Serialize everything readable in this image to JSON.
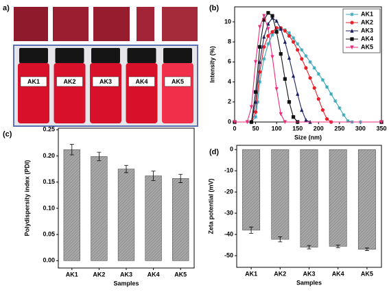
{
  "photo_panel": {
    "label": "a)",
    "jar_labels": [
      "AK1",
      "AK2",
      "AK3",
      "AK4",
      "AK5"
    ]
  },
  "chart_data": [
    {
      "type": "line",
      "panel_label": "(b)",
      "x_label": "Size (nm)",
      "y_label": "Intensity (%)",
      "xlim": [
        0,
        350
      ],
      "xticks": [
        0,
        50,
        100,
        150,
        200,
        250,
        300,
        350
      ],
      "ylim": [
        0,
        11.5
      ],
      "yticks": [
        0,
        2,
        4,
        6,
        8,
        10
      ],
      "legend": "upper right",
      "series": [
        {
          "name": "AK1",
          "color": "#3aa6b9",
          "marker": "star",
          "x": [
            0,
            40,
            50,
            55,
            60,
            70,
            80,
            90,
            100,
            110,
            120,
            130,
            140,
            150,
            160,
            170,
            180,
            190,
            200,
            210,
            220,
            230,
            240,
            250,
            260,
            270,
            280,
            300,
            350
          ],
          "values": [
            0,
            0,
            0.5,
            2,
            4,
            6.3,
            7.8,
            8.7,
            9.2,
            9.3,
            9.2,
            8.9,
            8.4,
            7.8,
            7.2,
            6.6,
            6.0,
            5.4,
            4.8,
            4.2,
            3.5,
            2.8,
            2.1,
            1.4,
            0.7,
            0.1,
            0,
            0,
            0
          ]
        },
        {
          "name": "AK2",
          "color": "#e8202a",
          "marker": "circle",
          "x": [
            0,
            40,
            50,
            60,
            70,
            80,
            90,
            100,
            110,
            120,
            130,
            140,
            150,
            160,
            170,
            180,
            190,
            200,
            210,
            220,
            230,
            350
          ],
          "values": [
            0,
            0,
            1,
            5,
            7.5,
            8.6,
            9.0,
            9.4,
            9.4,
            9.1,
            8.6,
            8.0,
            7.2,
            6.3,
            5.4,
            4.4,
            3.4,
            2.3,
            1.2,
            0.3,
            0,
            0
          ]
        },
        {
          "name": "AK3",
          "color": "#1a1f5e",
          "marker": "triangle-up",
          "x": [
            0,
            40,
            50,
            60,
            70,
            80,
            90,
            100,
            110,
            120,
            130,
            140,
            150,
            160,
            170,
            180,
            350
          ],
          "values": [
            0,
            0,
            2,
            6,
            8.5,
            9.8,
            10.4,
            10.1,
            9.3,
            8.0,
            6.4,
            4.6,
            2.8,
            1.2,
            0.2,
            0,
            0
          ]
        },
        {
          "name": "AK4",
          "color": "#111111",
          "marker": "square",
          "x": [
            0,
            40,
            50,
            60,
            70,
            80,
            90,
            100,
            110,
            120,
            130,
            140,
            150,
            350
          ],
          "values": [
            0,
            0,
            3,
            7.5,
            10.2,
            10.9,
            10.6,
            9.0,
            6.8,
            4.3,
            2.0,
            0.5,
            0,
            0
          ]
        },
        {
          "name": "AK5",
          "color": "#ee2a7b",
          "marker": "triangle-down",
          "x": [
            0,
            30,
            40,
            50,
            60,
            70,
            80,
            90,
            100,
            110,
            120,
            350
          ],
          "values": [
            0,
            0,
            1.5,
            6,
            9.5,
            10.6,
            9.3,
            6.5,
            3.3,
            0.8,
            0,
            0
          ]
        }
      ]
    },
    {
      "type": "bar",
      "panel_label": "(c)",
      "x_label": "Samples",
      "y_label": "Polydispersity index (PDI)",
      "categories": [
        "AK1",
        "AK2",
        "AK3",
        "AK4",
        "AK5"
      ],
      "values": [
        0.212,
        0.199,
        0.175,
        0.162,
        0.157
      ],
      "errors": [
        0.01,
        0.008,
        0.007,
        0.009,
        0.008
      ],
      "color": "#9a9a9a",
      "ylim": [
        -0.014,
        0.253
      ],
      "yticks": [
        {
          "value": 0,
          "label": "0.00"
        },
        0.05,
        {
          "value": 0.1,
          "label": "0.10"
        },
        0.15,
        {
          "value": 0.2,
          "label": "0.20"
        },
        0.25
      ]
    },
    {
      "type": "bar",
      "panel_label": "(d)",
      "x_label": "Samples",
      "y_label": "Zeta potential (mV)",
      "categories": [
        "AK1",
        "AK2",
        "AK3",
        "AK4",
        "AK5"
      ],
      "values": [
        -38,
        -42.3,
        -46,
        -45.6,
        -47
      ],
      "errors": [
        1.5,
        1.2,
        0.8,
        0.6,
        0.6
      ],
      "color": "#9a9a9a",
      "ylim": [
        -55.5,
        2
      ],
      "yticks": [
        0,
        -10,
        -20,
        -30,
        -40,
        -50
      ]
    }
  ]
}
